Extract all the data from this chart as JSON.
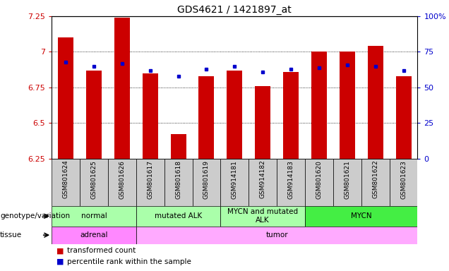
{
  "title": "GDS4621 / 1421897_at",
  "samples": [
    "GSM801624",
    "GSM801625",
    "GSM801626",
    "GSM801617",
    "GSM801618",
    "GSM801619",
    "GSM914181",
    "GSM914182",
    "GSM914183",
    "GSM801620",
    "GSM801621",
    "GSM801622",
    "GSM801623"
  ],
  "bar_values": [
    7.1,
    6.87,
    7.24,
    6.85,
    6.42,
    6.83,
    6.87,
    6.76,
    6.86,
    7.0,
    7.0,
    7.04,
    6.83
  ],
  "percentile_values": [
    68,
    65,
    67,
    62,
    58,
    63,
    65,
    61,
    63,
    64,
    66,
    65,
    62
  ],
  "bar_bottom": 6.25,
  "ylim_left": [
    6.25,
    7.25
  ],
  "ylim_right": [
    0,
    100
  ],
  "yticks_left": [
    6.25,
    6.5,
    6.75,
    7.0,
    7.25
  ],
  "yticks_right": [
    0,
    25,
    50,
    75,
    100
  ],
  "ytick_labels_left": [
    "6.25",
    "6.5",
    "6.75",
    "7",
    "7.25"
  ],
  "ytick_labels_right": [
    "0",
    "25",
    "50",
    "75",
    "100%"
  ],
  "bar_color": "#CC0000",
  "percentile_color": "#0000CC",
  "bg_color": "#FFFFFF",
  "plot_bg_color": "#FFFFFF",
  "tick_color_left": "#CC0000",
  "tick_color_right": "#0000CC",
  "genotype_groups": [
    {
      "label": "normal",
      "start": 0,
      "end": 3,
      "color": "#AAFFAA"
    },
    {
      "label": "mutated ALK",
      "start": 3,
      "end": 6,
      "color": "#AAFFAA"
    },
    {
      "label": "MYCN and mutated\nALK",
      "start": 6,
      "end": 9,
      "color": "#AAFFAA"
    },
    {
      "label": "MYCN",
      "start": 9,
      "end": 13,
      "color": "#44EE44"
    }
  ],
  "tissue_groups": [
    {
      "label": "adrenal",
      "start": 0,
      "end": 3,
      "color": "#FF88FF"
    },
    {
      "label": "tumor",
      "start": 3,
      "end": 13,
      "color": "#FFAAFF"
    }
  ],
  "legend_items": [
    {
      "label": "transformed count",
      "color": "#CC0000"
    },
    {
      "label": "percentile rank within the sample",
      "color": "#0000CC"
    }
  ],
  "genotype_label": "genotype/variation",
  "tissue_label": "tissue",
  "xtick_bg": "#CCCCCC",
  "separator_color": "#888888"
}
